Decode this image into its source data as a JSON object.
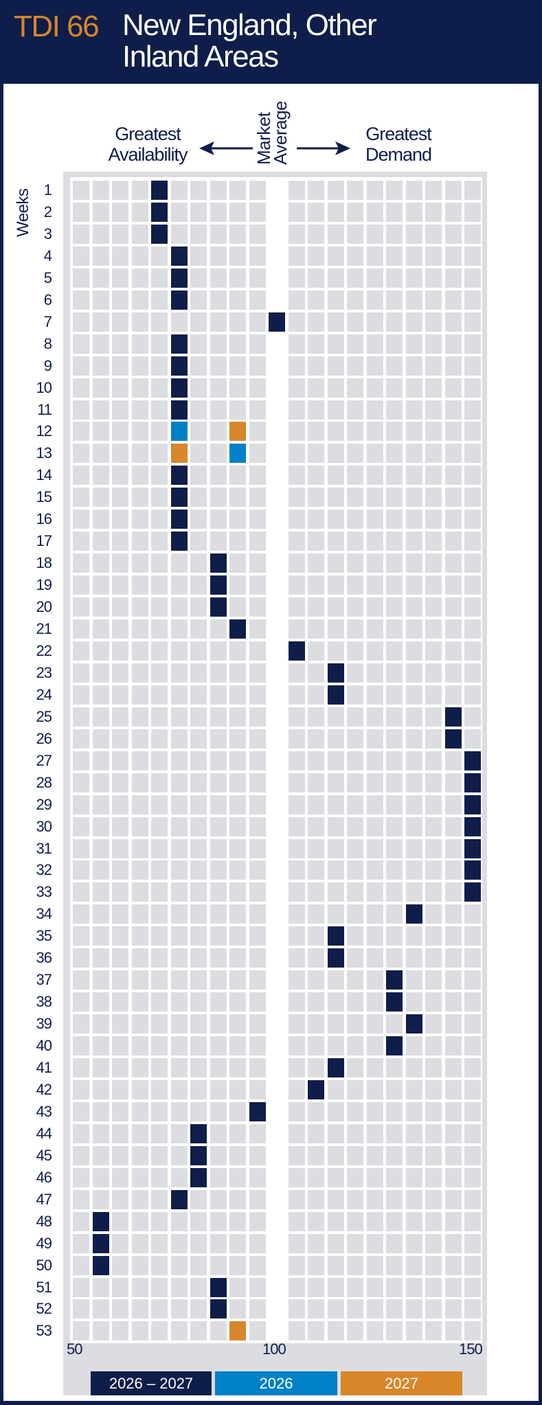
{
  "header": {
    "code": "TDI 66",
    "title_line1": "New England, Other",
    "title_line2": "Inland Areas"
  },
  "chart_data": {
    "type": "heatmap",
    "ylabel": "Weeks",
    "left_label_1": "Greatest",
    "left_label_2": "Availability",
    "center_label_1": "Market",
    "center_label_2": "Average",
    "right_label_1": "Greatest",
    "right_label_2": "Demand",
    "x_ticks": [
      "50",
      "100",
      "150"
    ],
    "xlim": [
      50,
      150
    ],
    "x_step": 5,
    "weeks": [
      1,
      2,
      3,
      4,
      5,
      6,
      7,
      8,
      9,
      10,
      11,
      12,
      13,
      14,
      15,
      16,
      17,
      18,
      19,
      20,
      21,
      22,
      23,
      24,
      25,
      26,
      27,
      28,
      29,
      30,
      31,
      32,
      33,
      34,
      35,
      36,
      37,
      38,
      39,
      40,
      41,
      42,
      43,
      44,
      45,
      46,
      47,
      48,
      49,
      50,
      51,
      52,
      53
    ],
    "series": [
      {
        "name": "2026 – 2027",
        "color": "#0f1d4a",
        "values": [
          70,
          70,
          70,
          75,
          75,
          75,
          100,
          75,
          75,
          75,
          75,
          null,
          null,
          75,
          75,
          75,
          75,
          85,
          85,
          85,
          90,
          105,
          115,
          115,
          145,
          145,
          150,
          150,
          150,
          150,
          150,
          150,
          150,
          135,
          115,
          115,
          130,
          130,
          135,
          130,
          115,
          110,
          95,
          80,
          80,
          80,
          75,
          55,
          55,
          55,
          85,
          85,
          null
        ]
      },
      {
        "name": "2026",
        "color": "#0080c6",
        "values": [
          null,
          null,
          null,
          null,
          null,
          null,
          null,
          null,
          null,
          null,
          null,
          75,
          90,
          null,
          null,
          null,
          null,
          null,
          null,
          null,
          null,
          null,
          null,
          null,
          null,
          null,
          null,
          null,
          null,
          null,
          null,
          null,
          null,
          null,
          null,
          null,
          null,
          null,
          null,
          null,
          null,
          null,
          null,
          null,
          null,
          null,
          null,
          null,
          null,
          null,
          null,
          null,
          null
        ]
      },
      {
        "name": "2027",
        "color": "#d8862a",
        "values": [
          null,
          null,
          null,
          null,
          null,
          null,
          null,
          null,
          null,
          null,
          null,
          90,
          75,
          null,
          null,
          null,
          null,
          null,
          null,
          null,
          null,
          null,
          null,
          null,
          null,
          null,
          null,
          null,
          null,
          null,
          null,
          null,
          null,
          null,
          null,
          null,
          null,
          null,
          null,
          null,
          null,
          null,
          null,
          null,
          null,
          null,
          null,
          null,
          null,
          null,
          null,
          null,
          90
        ]
      }
    ],
    "empty_cell_color": "#dcdde0",
    "legend_placement": "bottom"
  }
}
